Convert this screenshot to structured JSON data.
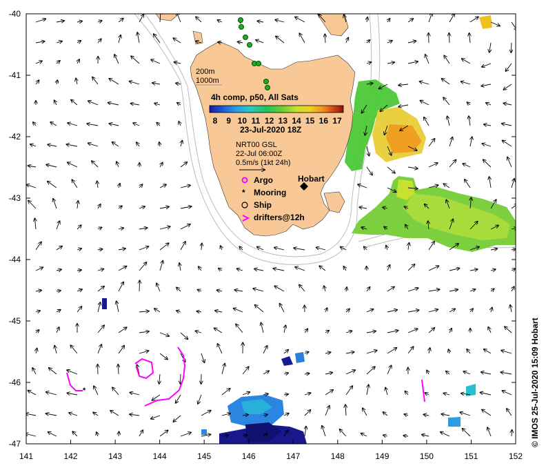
{
  "axes": {
    "x_ticks": [
      "141",
      "142",
      "143",
      "144",
      "145",
      "146",
      "147",
      "148",
      "149",
      "150",
      "151",
      "152"
    ],
    "y_ticks": [
      "-40",
      "-41",
      "-42",
      "-43",
      "-44",
      "-45",
      "-46",
      "-47"
    ]
  },
  "depth_labels": [
    "200m",
    "1000m"
  ],
  "colorbar": {
    "title": "4h comp, p50, All Sats",
    "ticks": [
      "8",
      "9",
      "10",
      "11",
      "12",
      "13",
      "14",
      "15",
      "16",
      "17"
    ],
    "date": "23-Jul-2020 18Z",
    "colors": [
      "#1a1aa0",
      "#1e5ad8",
      "#2a9be8",
      "#28c8c8",
      "#22c060",
      "#6cd030",
      "#c8e030",
      "#f0d020",
      "#f09018",
      "#d04010",
      "#901010"
    ]
  },
  "currents": {
    "source": "NRT00 GSL",
    "time": "22-Jul 06:00Z",
    "scale": "0.5m/s (1kt 24h)"
  },
  "legend": {
    "argo": "Argo",
    "mooring": "Mooring",
    "ship": "Ship",
    "drifters": "drifters@12h"
  },
  "place_label": "Hobart",
  "credit": "© IMOS 25-Jul-2020 15:09 Hobart",
  "colors": {
    "land": "#f8c896",
    "argo": "#ff00ff",
    "drifter": "#ff00ff",
    "ship_track": "#22aa22",
    "contour": "#bbbbbb"
  }
}
